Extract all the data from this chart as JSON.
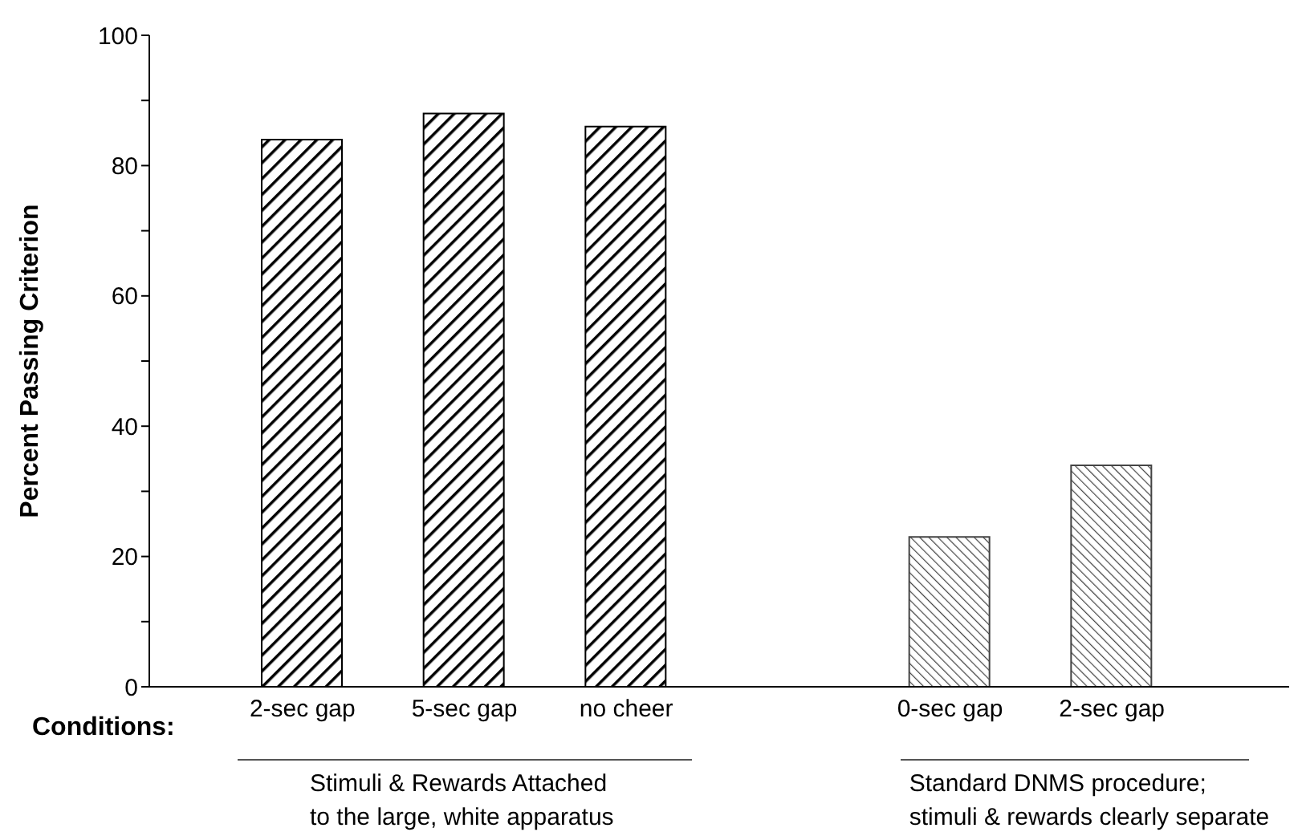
{
  "chart_data": {
    "type": "bar",
    "ylabel": "Percent Passing Criterion",
    "categories": [
      "2-sec gap",
      "5-sec gap",
      "no cheer",
      null,
      "0-sec gap",
      "2-sec gap"
    ],
    "values": [
      84,
      88,
      86,
      null,
      23,
      34
    ],
    "colors": [
      "#000000",
      "#000000",
      "#000000",
      null,
      "#444444",
      "#444444"
    ],
    "ylim": [
      0,
      100
    ],
    "yticks": [
      0,
      {
        "value": 10,
        "label": null
      },
      20,
      {
        "value": 30,
        "label": null
      },
      40,
      {
        "value": 50,
        "label": null
      },
      60,
      {
        "value": 70,
        "label": null
      },
      80,
      {
        "value": 90,
        "label": null
      },
      100
    ],
    "annotations": [
      "Conditions:",
      "Stimuli & Rewards Attached\nto the large, white apparatus",
      "Standard DNMS procedure;\nstimuli & rewards clearly separate"
    ]
  }
}
